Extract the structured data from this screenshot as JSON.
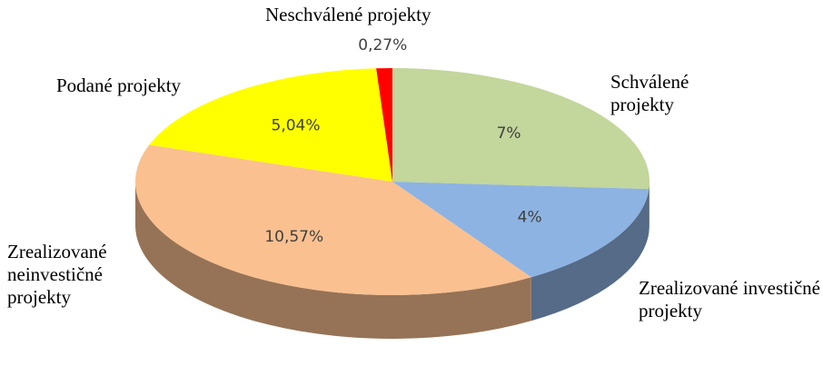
{
  "chart_data": {
    "type": "pie",
    "categories": [
      "Schválené projekty",
      "Zrealizované investičné projekty",
      "Zrealizované neinvestičné projekty",
      "Podané projekty",
      "Neschválené projekty"
    ],
    "values": [
      7,
      4,
      10.57,
      5.04,
      0.27
    ],
    "value_labels": [
      "7%",
      "4%",
      "10,57%",
      "5,04%",
      "0,27%"
    ],
    "colors": [
      "#c3d69b",
      "#8db3e2",
      "#fac090",
      "#ffff00",
      "#ff0000"
    ]
  }
}
